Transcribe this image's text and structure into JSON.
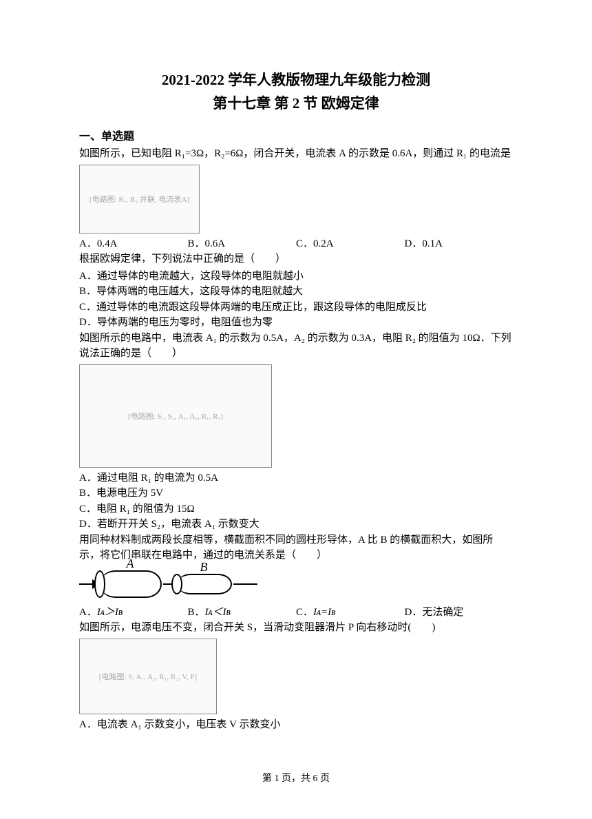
{
  "title": {
    "line1": "2021-2022 学年人教版物理九年级能力检测",
    "line2": "第十七章  第 2 节  欧姆定律"
  },
  "section_heading": "一、单选题",
  "q1": {
    "prefix": "1．",
    "text": "如图所示，已知电阻 R₁=3Ω，R₂=6Ω，闭合开关，电流表 A 的示数是 0.6A，则通过 R₁ 的电流是",
    "diagram_label": "[电路图: R₁, R₂ 并联, 电流表A]",
    "options": {
      "a": "A．0.4A",
      "b": "B．0.6A",
      "c": "C．0.2A",
      "d": "D．0.1A"
    }
  },
  "q2": {
    "prefix": "2．",
    "text": "根据欧姆定律，下列说法中正确的是（　　）",
    "options": {
      "a": "A．通过导体的电流越大，这段导体的电阻就越小",
      "b": "B．导体两端的电压越大，这段导体的电阻就越大",
      "c": "C．通过导体的电流跟这段导体两端的电压成正比，跟这段导体的电阻成反比",
      "d": "D．导体两端的电压为零时，电阻值也为零"
    }
  },
  "q3": {
    "prefix": "3．",
    "text": "如图所示的电路中，电流表 A₁ 的示数为 0.5A，A₂ 的示数为 0.3A，电阻 R₂ 的阻值为 10Ω．下列说法正确的是（　　）",
    "diagram_label": "[电路图: S₁, S₂, A₁, A₂, R₁, R₂]",
    "options": {
      "a": "A．通过电阻 R₁ 的电流为 0.5A",
      "b": "B．电源电压为 5V",
      "c": "C．电阻 R₁ 的阻值为 15Ω",
      "d": "D．若断开开关 S₂，电流表 A₁ 示数变大"
    }
  },
  "q4": {
    "prefix": "4．",
    "text": "用同种材料制成两段长度相等，横截面积不同的圆柱形导体，A 比 B 的横截面积大，如图所示，将它们串联在电路中，通过的电流关系是（　　）",
    "cylinder_labels": {
      "a": "A",
      "b": "B"
    },
    "options": {
      "a_pre": "A．",
      "a_sym": "Iᴀ＞Iʙ",
      "b_pre": "B．",
      "b_sym": "Iᴀ＜Iʙ",
      "c_pre": "C．",
      "c_sym": "Iᴀ=Iʙ",
      "d": "D．无法确定"
    }
  },
  "q5": {
    "prefix": "5．",
    "text": "如图所示，电源电压不变，闭合开关 S，当滑动变阻器滑片 P 向右移动时(　　)",
    "diagram_label": "[电路图: S, A₁, A₂, R₁, R₂, V, P]",
    "options": {
      "a": "A．电流表 A₁ 示数变小，电压表 V 示数变小"
    }
  },
  "footer": {
    "text": "第 1 页，共 6 页"
  },
  "colors": {
    "text": "#000000",
    "background": "#ffffff",
    "diagram_border": "#888888",
    "diagram_bg": "#fafafa"
  },
  "fonts": {
    "title_size": 21,
    "body_size": 15,
    "heading_size": 16,
    "footer_size": 14
  }
}
